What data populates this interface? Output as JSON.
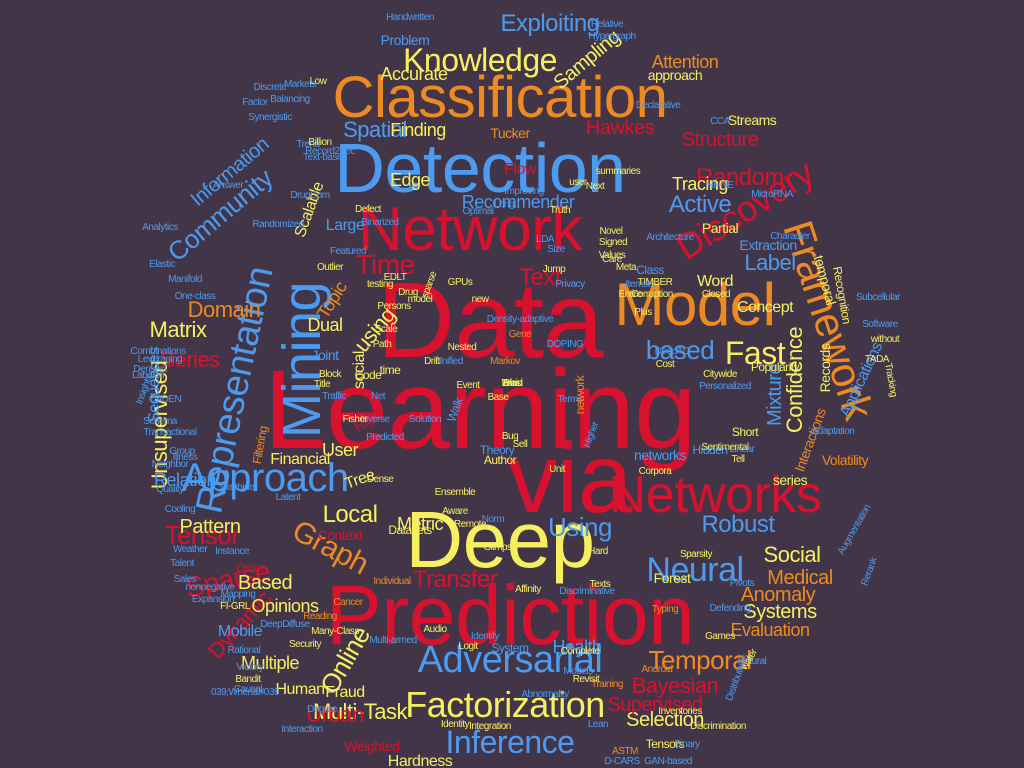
{
  "palette": {
    "background": "#433548",
    "red": "#d8122e",
    "blue": "#4b9bf0",
    "yellow": "#f6f060",
    "orange": "#ee8a22"
  },
  "words": [
    {
      "text": "Learning",
      "color": "red"
    },
    {
      "text": "Data",
      "color": "red"
    },
    {
      "text": "Network",
      "color": "red"
    },
    {
      "text": "Detection",
      "color": "blue"
    },
    {
      "text": "via",
      "color": "red"
    },
    {
      "text": "Prediction",
      "color": "red"
    },
    {
      "text": "Classification",
      "color": "orange"
    },
    {
      "text": "Deep",
      "color": "yellow"
    },
    {
      "text": "Model",
      "color": "orange"
    },
    {
      "text": "Networks",
      "color": "red"
    },
    {
      "text": "Mining",
      "color": "blue"
    },
    {
      "text": "Framework",
      "color": "orange"
    },
    {
      "text": "Discovery",
      "color": "red"
    },
    {
      "text": "Representation",
      "color": "blue"
    },
    {
      "text": "Approach",
      "color": "blue"
    },
    {
      "text": "Adversarial",
      "color": "blue"
    },
    {
      "text": "Factorization",
      "color": "yellow"
    },
    {
      "text": "Inference",
      "color": "blue"
    },
    {
      "text": "Knowledge",
      "color": "yellow"
    },
    {
      "text": "Community",
      "color": "blue"
    },
    {
      "text": "Graph",
      "color": "orange"
    },
    {
      "text": "Neural",
      "color": "blue"
    },
    {
      "text": "Temporal",
      "color": "orange"
    },
    {
      "text": "Sparse",
      "color": "red"
    },
    {
      "text": "Dynamic",
      "color": "red"
    },
    {
      "text": "Bayesian",
      "color": "red"
    },
    {
      "text": "Tensor",
      "color": "red"
    },
    {
      "text": "Using",
      "color": "blue"
    },
    {
      "text": "Robust",
      "color": "blue"
    },
    {
      "text": "Local",
      "color": "yellow"
    },
    {
      "text": "Exploiting",
      "color": "blue"
    },
    {
      "text": "Information",
      "color": "blue"
    },
    {
      "text": "Spatial",
      "color": "blue"
    },
    {
      "text": "Random",
      "color": "red"
    },
    {
      "text": "Active",
      "color": "blue"
    },
    {
      "text": "Structure",
      "color": "red"
    },
    {
      "text": "Time",
      "color": "red"
    },
    {
      "text": "Text",
      "color": "red"
    },
    {
      "text": "Label",
      "color": "blue"
    },
    {
      "text": "Fast",
      "color": "yellow"
    },
    {
      "text": "based",
      "color": "blue"
    },
    {
      "text": "Matrix",
      "color": "yellow"
    },
    {
      "text": "Series",
      "color": "red"
    },
    {
      "text": "Domain",
      "color": "orange"
    },
    {
      "text": "Topic",
      "color": "orange"
    },
    {
      "text": "using",
      "color": "yellow"
    },
    {
      "text": "Unsupervised",
      "color": "yellow"
    },
    {
      "text": "Pattern",
      "color": "yellow"
    },
    {
      "text": "Social",
      "color": "yellow"
    },
    {
      "text": "Medical",
      "color": "orange"
    },
    {
      "text": "Anomaly",
      "color": "orange"
    },
    {
      "text": "Systems",
      "color": "yellow"
    },
    {
      "text": "Evaluation",
      "color": "orange"
    },
    {
      "text": "Online",
      "color": "yellow"
    },
    {
      "text": "Based",
      "color": "yellow"
    },
    {
      "text": "Transfer",
      "color": "red"
    },
    {
      "text": "Multi-Task",
      "color": "yellow"
    },
    {
      "text": "Selection",
      "color": "yellow"
    },
    {
      "text": "Supervised",
      "color": "red"
    },
    {
      "text": "Urban",
      "color": "red"
    },
    {
      "text": "Hardness",
      "color": "yellow"
    },
    {
      "text": "Multiple",
      "color": "yellow"
    },
    {
      "text": "Mobile",
      "color": "blue"
    },
    {
      "text": "Opinions",
      "color": "yellow"
    },
    {
      "text": "Health",
      "color": "blue"
    },
    {
      "text": "Sampling",
      "color": "yellow"
    },
    {
      "text": "Attention",
      "color": "orange"
    },
    {
      "text": "Accurate",
      "color": "yellow"
    },
    {
      "text": "Finding",
      "color": "yellow"
    },
    {
      "text": "Recommender",
      "color": "blue"
    },
    {
      "text": "Edge",
      "color": "yellow"
    },
    {
      "text": "Tracing",
      "color": "yellow"
    },
    {
      "text": "Hawkes",
      "color": "red"
    },
    {
      "text": "Flow",
      "color": "red"
    },
    {
      "text": "Confidence",
      "color": "yellow"
    },
    {
      "text": "Mixture",
      "color": "blue"
    },
    {
      "text": "Dual",
      "color": "yellow"
    },
    {
      "text": "Scalable",
      "color": "yellow"
    },
    {
      "text": "User",
      "color": "yellow"
    },
    {
      "text": "Financial",
      "color": "yellow"
    },
    {
      "text": "Relation",
      "color": "blue"
    },
    {
      "text": "Sequences",
      "color": "blue"
    },
    {
      "text": "Metric",
      "color": "yellow"
    },
    {
      "text": "Tree",
      "color": "yellow"
    },
    {
      "text": "networks",
      "color": "blue"
    },
    {
      "text": "Concept",
      "color": "yellow"
    },
    {
      "text": "Word",
      "color": "yellow"
    },
    {
      "text": "Partial",
      "color": "yellow"
    },
    {
      "text": "Fraud",
      "color": "yellow"
    },
    {
      "text": "Human",
      "color": "yellow"
    },
    {
      "text": "Forest",
      "color": "yellow"
    },
    {
      "text": "Streams",
      "color": "yellow"
    },
    {
      "text": "Problem",
      "color": "blue"
    },
    {
      "text": "Large",
      "color": "blue"
    },
    {
      "text": "Joint",
      "color": "blue"
    },
    {
      "text": "social",
      "color": "yellow"
    },
    {
      "text": "time",
      "color": "yellow"
    },
    {
      "text": "Applications",
      "color": "blue"
    },
    {
      "text": "temporal",
      "color": "yellow"
    },
    {
      "text": "Tensors",
      "color": "yellow"
    },
    {
      "text": "approach",
      "color": "yellow"
    },
    {
      "text": "Extraction",
      "color": "blue"
    },
    {
      "text": "Interactions",
      "color": "orange"
    },
    {
      "text": "Volatility",
      "color": "orange"
    },
    {
      "text": "series",
      "color": "yellow"
    },
    {
      "text": "Recognition",
      "color": "yellow"
    },
    {
      "text": "Records",
      "color": "yellow"
    },
    {
      "text": "Popularity",
      "color": "yellow"
    },
    {
      "text": "Tucker",
      "color": "orange"
    },
    {
      "text": "Filtering",
      "color": "orange"
    },
    {
      "text": "Context",
      "color": "red"
    },
    {
      "text": "Weighted",
      "color": "red"
    },
    {
      "text": "Order",
      "color": "red"
    },
    {
      "text": "Class",
      "color": "blue"
    },
    {
      "text": "Markov",
      "color": "orange"
    },
    {
      "text": "Right",
      "color": "red"
    },
    {
      "text": "Gene",
      "color": "orange"
    },
    {
      "text": "Theory",
      "color": "blue"
    },
    {
      "text": "Walk",
      "color": "blue"
    },
    {
      "text": "Hidden",
      "color": "blue"
    },
    {
      "text": "network",
      "color": "orange"
    },
    {
      "text": "Short",
      "color": "yellow"
    },
    {
      "text": "Code",
      "color": "yellow"
    },
    {
      "text": "Author",
      "color": "yellow"
    },
    {
      "text": "Solution",
      "color": "blue"
    },
    {
      "text": "Datasets",
      "color": "yellow"
    },
    {
      "text": "Reading",
      "color": "orange"
    },
    {
      "text": "Latent",
      "color": "blue"
    },
    {
      "text": "Illness",
      "color": "blue"
    },
    {
      "text": "Cancer",
      "color": "orange"
    },
    {
      "text": "Audio",
      "color": "yellow"
    },
    {
      "text": "Identify",
      "color": "blue"
    },
    {
      "text": "Security",
      "color": "yellow"
    },
    {
      "text": "Training",
      "color": "orange"
    },
    {
      "text": "Integration",
      "color": "yellow"
    },
    {
      "text": "Binary",
      "color": "blue"
    },
    {
      "text": "Typing",
      "color": "orange"
    },
    {
      "text": "Logit",
      "color": "yellow"
    },
    {
      "text": "Complete",
      "color": "yellow"
    },
    {
      "text": "System",
      "color": "blue"
    },
    {
      "text": "Affinity",
      "color": "yellow"
    },
    {
      "text": "Hard",
      "color": "yellow"
    },
    {
      "text": "Discriminative",
      "color": "blue"
    },
    {
      "text": "Individual",
      "color": "orange"
    },
    {
      "text": "Texts",
      "color": "yellow"
    },
    {
      "text": "Glimpse",
      "color": "yellow"
    },
    {
      "text": "Norm",
      "color": "blue"
    },
    {
      "text": "Lean",
      "color": "blue"
    },
    {
      "text": "Identity",
      "color": "yellow"
    },
    {
      "text": "Weather",
      "color": "blue"
    },
    {
      "text": "Mapping",
      "color": "blue"
    },
    {
      "text": "Cooling",
      "color": "blue"
    },
    {
      "text": "Talent",
      "color": "blue"
    },
    {
      "text": "Sales",
      "color": "blue"
    },
    {
      "text": "Quality",
      "color": "blue"
    },
    {
      "text": "Neighbor",
      "color": "blue"
    },
    {
      "text": "Group",
      "color": "blue"
    },
    {
      "text": "Combinations",
      "color": "blue"
    },
    {
      "text": "Densest",
      "color": "blue"
    },
    {
      "text": "Labeled",
      "color": "blue"
    },
    {
      "text": "Insights",
      "color": "blue"
    },
    {
      "text": "One-class",
      "color": "blue"
    },
    {
      "text": "Manifold",
      "color": "blue"
    },
    {
      "text": "Elastic",
      "color": "blue"
    },
    {
      "text": "Analytics",
      "color": "blue"
    },
    {
      "text": "Randomized",
      "color": "blue"
    },
    {
      "text": "DrugCom",
      "color": "blue"
    },
    {
      "text": "Text-based",
      "color": "blue"
    },
    {
      "text": "Trend",
      "color": "blue"
    },
    {
      "text": "Factor",
      "color": "blue"
    },
    {
      "text": "Synergistic",
      "color": "blue"
    },
    {
      "text": "Balancing",
      "color": "blue"
    },
    {
      "text": "Discrete",
      "color": "blue"
    },
    {
      "text": "Markets",
      "color": "blue"
    },
    {
      "text": "Handwritten",
      "color": "blue"
    },
    {
      "text": "Relative",
      "color": "blue"
    },
    {
      "text": "Hypergraph",
      "color": "blue"
    },
    {
      "text": "Declarative",
      "color": "blue"
    },
    {
      "text": "CCA",
      "color": "blue"
    },
    {
      "text": "summaries",
      "color": "yellow"
    },
    {
      "text": "HHNE",
      "color": "blue"
    },
    {
      "text": "MicroRNA",
      "color": "blue"
    },
    {
      "text": "Architecture",
      "color": "blue"
    },
    {
      "text": "Character",
      "color": "blue"
    },
    {
      "text": "Subcellular",
      "color": "blue"
    },
    {
      "text": "Software",
      "color": "blue"
    },
    {
      "text": "without",
      "color": "yellow"
    },
    {
      "text": "TADA",
      "color": "yellow"
    },
    {
      "text": "Tracking",
      "color": "yellow"
    },
    {
      "text": "Citywide",
      "color": "yellow"
    },
    {
      "text": "Personalized",
      "color": "blue"
    },
    {
      "text": "DeepAD",
      "color": "blue"
    },
    {
      "text": "Cost",
      "color": "yellow"
    },
    {
      "text": "DOPING",
      "color": "blue"
    },
    {
      "text": "Density-adaptive",
      "color": "blue"
    },
    {
      "text": "Unified",
      "color": "blue"
    },
    {
      "text": "Drift",
      "color": "yellow"
    },
    {
      "text": "Block",
      "color": "yellow"
    },
    {
      "text": "Title",
      "color": "yellow"
    },
    {
      "text": "Traffic",
      "color": "blue"
    },
    {
      "text": "Net",
      "color": "blue"
    },
    {
      "text": "Event",
      "color": "yellow"
    },
    {
      "text": "Inverse",
      "color": "blue"
    },
    {
      "text": "Predicted",
      "color": "blue"
    },
    {
      "text": "Terms",
      "color": "blue"
    },
    {
      "text": "Base",
      "color": "yellow"
    },
    {
      "text": "Bug",
      "color": "yellow"
    },
    {
      "text": "Sell",
      "color": "yellow"
    },
    {
      "text": "Higher",
      "color": "blue"
    },
    {
      "text": "Unit",
      "color": "yellow"
    },
    {
      "text": "Ensemble",
      "color": "yellow"
    },
    {
      "text": "Aware",
      "color": "yellow"
    },
    {
      "text": "Remote",
      "color": "yellow"
    },
    {
      "text": "Corpora",
      "color": "yellow"
    },
    {
      "text": "Tell",
      "color": "yellow"
    },
    {
      "text": "Linear",
      "color": "blue"
    },
    {
      "text": "Sentimental",
      "color": "yellow"
    },
    {
      "text": "Adaptation",
      "color": "blue"
    },
    {
      "text": "Sparsity",
      "color": "yellow"
    },
    {
      "text": "Pivots",
      "color": "blue"
    },
    {
      "text": "Augmentation",
      "color": "blue"
    },
    {
      "text": "Rerank",
      "color": "blue"
    },
    {
      "text": "Defending",
      "color": "blue"
    },
    {
      "text": "Natural",
      "color": "blue"
    },
    {
      "text": "Games",
      "color": "yellow"
    },
    {
      "text": "Models",
      "color": "blue"
    },
    {
      "text": "Revisit",
      "color": "yellow"
    },
    {
      "text": "Abnormality",
      "color": "blue"
    },
    {
      "text": "Discrimination",
      "color": "yellow"
    },
    {
      "text": "Inventories",
      "color": "yellow"
    },
    {
      "text": "Distributions",
      "color": "blue"
    },
    {
      "text": "water",
      "color": "yellow"
    },
    {
      "text": "Android",
      "color": "orange"
    },
    {
      "text": "ASTM",
      "color": "orange"
    },
    {
      "text": "D-CARS",
      "color": "blue"
    },
    {
      "text": "GAN-based",
      "color": "blue"
    },
    {
      "text": "039;When&#039",
      "color": "blue"
    },
    {
      "text": "Interaction",
      "color": "blue"
    },
    {
      "text": "Degree",
      "color": "blue"
    },
    {
      "text": "Multi-armed",
      "color": "blue"
    },
    {
      "text": "Bandit",
      "color": "yellow"
    },
    {
      "text": "Victory",
      "color": "blue"
    },
    {
      "text": "Causal",
      "color": "blue"
    },
    {
      "text": "Rational",
      "color": "blue"
    },
    {
      "text": "DeepDiffuse",
      "color": "blue"
    },
    {
      "text": "Many-Class",
      "color": "yellow"
    },
    {
      "text": "FI-GRL",
      "color": "yellow"
    },
    {
      "text": "Expansion",
      "color": "blue"
    },
    {
      "text": "nonnegative",
      "color": "blue"
    },
    {
      "text": "Instance",
      "color": "blue"
    },
    {
      "text": "Machine",
      "color": "blue"
    },
    {
      "text": "Transactional",
      "color": "blue"
    },
    {
      "text": "Schema",
      "color": "blue"
    },
    {
      "text": "CADEN",
      "color": "blue"
    },
    {
      "text": "Leveraging",
      "color": "blue"
    },
    {
      "text": "Featured",
      "color": "blue"
    },
    {
      "text": "Binarized",
      "color": "blue"
    },
    {
      "text": "Outlier",
      "color": "yellow"
    },
    {
      "text": "Defect",
      "color": "yellow"
    },
    {
      "text": "Optimal",
      "color": "blue"
    },
    {
      "text": "Long",
      "color": "blue"
    },
    {
      "text": "LDA",
      "color": "blue"
    },
    {
      "text": "Size",
      "color": "blue"
    },
    {
      "text": "Jump",
      "color": "yellow"
    },
    {
      "text": "Novel",
      "color": "yellow"
    },
    {
      "text": "Signed",
      "color": "yellow"
    },
    {
      "text": "Values",
      "color": "yellow"
    },
    {
      "text": "Care",
      "color": "yellow"
    },
    {
      "text": "Meta",
      "color": "yellow"
    },
    {
      "text": "TIMBER",
      "color": "yellow"
    },
    {
      "text": "Corruption",
      "color": "yellow"
    },
    {
      "text": "Entire",
      "color": "yellow"
    },
    {
      "text": "Closed",
      "color": "yellow"
    },
    {
      "text": "EDLT",
      "color": "yellow"
    },
    {
      "text": "GPUs",
      "color": "yellow"
    },
    {
      "text": "Next",
      "color": "yellow"
    },
    {
      "text": "Truth",
      "color": "yellow"
    },
    {
      "text": "Improving",
      "color": "blue"
    },
    {
      "text": "user",
      "color": "yellow"
    },
    {
      "text": "Low",
      "color": "yellow"
    },
    {
      "text": "Billion",
      "color": "yellow"
    },
    {
      "text": "Record2Vec",
      "color": "blue"
    },
    {
      "text": "Answer",
      "color": "blue"
    },
    {
      "text": "Itemset",
      "color": "blue"
    },
    {
      "text": "Privacy",
      "color": "blue"
    },
    {
      "text": "Plus",
      "color": "yellow"
    },
    {
      "text": "new",
      "color": "yellow"
    },
    {
      "text": "testing",
      "color": "yellow"
    },
    {
      "text": "Persons",
      "color": "yellow"
    },
    {
      "text": "model",
      "color": "yellow"
    },
    {
      "text": "Scale",
      "color": "yellow"
    },
    {
      "text": "Path",
      "color": "yellow"
    },
    {
      "text": "sparse",
      "color": "yellow"
    },
    {
      "text": "Drug",
      "color": "yellow"
    },
    {
      "text": "Nested",
      "color": "yellow"
    },
    {
      "text": "Fisher",
      "color": "yellow"
    },
    {
      "text": "Dense",
      "color": "yellow"
    },
    {
      "text": "Bias",
      "color": "yellow"
    },
    {
      "text": "Brain",
      "color": "yellow"
    },
    {
      "text": "Wind",
      "color": "yellow"
    }
  ]
}
